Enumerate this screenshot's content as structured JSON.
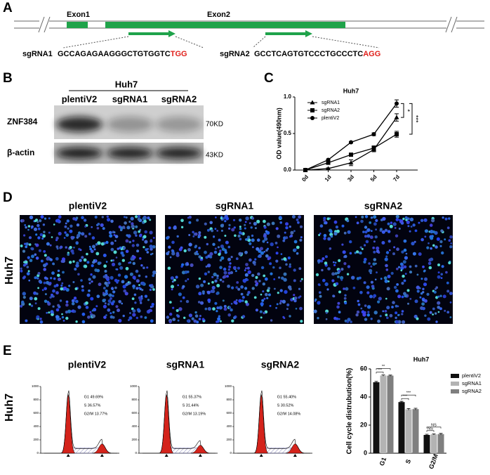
{
  "panels": {
    "a": "A",
    "b": "B",
    "c": "C",
    "d": "D",
    "e": "E"
  },
  "gene": {
    "exon1": "Exon1",
    "exon2": "Exon2",
    "sgrna1_name": "sgRNA1",
    "sgrna1_seq": "GCCAGAGAAGGGCTGTGGTC",
    "sgrna1_pam": "TGG",
    "sgrna2_name": "sgRNA2",
    "sgrna2_seq": "GCCTCAGTGTCCCTGCCCTC",
    "sgrna2_pam": "AGG"
  },
  "western": {
    "cell_line": "Huh7",
    "lanes": [
      "plentiV2",
      "sgRNA1",
      "sgRNA2"
    ],
    "rows": [
      {
        "protein": "ZNF384",
        "size": "70KD"
      },
      {
        "protein": "β-actin",
        "size": "43KD"
      }
    ]
  },
  "microscopy": {
    "row_label": "Huh7",
    "images": [
      "plentiV2",
      "sgRNA1",
      "sgRNA2"
    ]
  },
  "flow": {
    "row_label": "Huh7",
    "yticks": [
      0,
      200,
      400,
      600,
      800,
      1000
    ],
    "samples": [
      {
        "name": "plentiV2",
        "stats": [
          "G1 49.69%",
          "S 36.57%",
          "G2/M 13.77%"
        ]
      },
      {
        "name": "sgRNA1",
        "stats": [
          "G1 55.37%",
          "S 31.44%",
          "G2/M 13.19%"
        ]
      },
      {
        "name": "sgRNA2",
        "stats": [
          "G1 55.40%",
          "S 30.52%",
          "G2/M 14.08%"
        ]
      }
    ]
  },
  "chart_data": [
    {
      "type": "line",
      "title": "Huh7",
      "y_label": "OD value(490nm)",
      "categories": [
        "0d",
        "1d",
        "3d",
        "5d",
        "7d"
      ],
      "ylim": [
        0,
        1.0
      ],
      "yticks": [
        {
          "value": 0,
          "label": "0.0"
        },
        {
          "value": 0.5,
          "label": "0.5"
        },
        {
          "value": 1.0,
          "label": "1.0"
        }
      ],
      "legend": "upper left",
      "series": [
        {
          "name": "sgRNA1",
          "color": "#000000",
          "marker": "triangle",
          "values": [
            0,
            0.02,
            0.1,
            0.28,
            0.72
          ],
          "errors": [
            0,
            0.01,
            0.04,
            0.03,
            0.05
          ]
        },
        {
          "name": "sgRNA2",
          "color": "#000000",
          "marker": "square",
          "values": [
            0,
            0.1,
            0.21,
            0.3,
            0.49
          ],
          "errors": [
            0,
            0.01,
            0.01,
            0.03,
            0.04
          ]
        },
        {
          "name": "plentiV2",
          "color": "#000000",
          "marker": "circle",
          "values": [
            0,
            0.14,
            0.38,
            0.49,
            0.91
          ],
          "errors": [
            0,
            0.01,
            0.01,
            0.02,
            0.05
          ]
        }
      ],
      "annotations": [
        "*",
        "***"
      ]
    },
    {
      "type": "bar",
      "title": "Huh7",
      "y_label": "Cell cycle distrubution(%)",
      "categories": [
        "G1",
        "S",
        "G2/M"
      ],
      "ylim": [
        0,
        60
      ],
      "yticks": [
        0,
        20,
        40,
        60
      ],
      "legend": "upper right",
      "series": [
        {
          "name": "plentiV2",
          "color": "#111111",
          "values": [
            50.5,
            36.4,
            13.0
          ],
          "errors": [
            0.6,
            0.5,
            0.5
          ]
        },
        {
          "name": "sgRNA1",
          "color": "#b3b3b3",
          "values": [
            55.3,
            31.2,
            13.4
          ],
          "errors": [
            0.4,
            0.6,
            0.4
          ]
        },
        {
          "name": "sgRNA2",
          "color": "#7f7f7f",
          "values": [
            55.2,
            31.4,
            13.6
          ],
          "errors": [
            0.4,
            0.6,
            0.5
          ]
        }
      ],
      "annotations": [
        "**",
        "***",
        "***",
        "***",
        "NS",
        "NS"
      ]
    }
  ]
}
